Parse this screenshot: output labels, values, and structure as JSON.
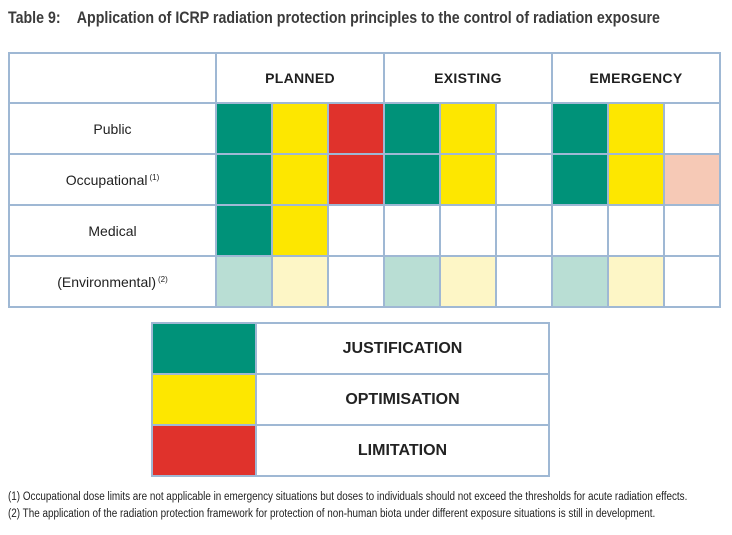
{
  "title": {
    "number": "Table 9:",
    "text": "Application of ICRP radiation protection principles to the control of radiation exposure"
  },
  "columns": [
    "PLANNED",
    "EXISTING",
    "EMERGENCY"
  ],
  "rows": [
    {
      "label": "Public",
      "sup": "",
      "cells": [
        "justification",
        "optimisation",
        "limitation",
        "justification",
        "optimisation",
        "none",
        "justification",
        "optimisation",
        "none"
      ]
    },
    {
      "label": "Occupational",
      "sup": "(1)",
      "cells": [
        "justification",
        "optimisation",
        "limitation",
        "justification",
        "optimisation",
        "none",
        "justification",
        "optimisation",
        "limitation-light"
      ]
    },
    {
      "label": "Medical",
      "sup": "",
      "cells": [
        "justification",
        "optimisation",
        "none",
        "none",
        "none",
        "none",
        "none",
        "none",
        "none"
      ]
    },
    {
      "label": "(Environmental)",
      "sup": "(2)",
      "cells": [
        "justification-light",
        "optimisation-light",
        "none",
        "justification-light",
        "optimisation-light",
        "none",
        "justification-light",
        "optimisation-light",
        "none"
      ]
    }
  ],
  "legend": [
    {
      "key": "justification",
      "label": "JUSTIFICATION",
      "color": "#009279"
    },
    {
      "key": "optimisation",
      "label": "OPTIMISATION",
      "color": "#fde700"
    },
    {
      "key": "limitation",
      "label": "LIMITATION",
      "color": "#e0322c"
    }
  ],
  "colors": {
    "justification": "#009279",
    "optimisation": "#fde700",
    "limitation": "#e0322c",
    "limitation-light": "#f6c9b6",
    "justification-light": "#b9ded4",
    "optimisation-light": "#fdf6c6",
    "border": "#9fb8d4"
  },
  "notes": [
    "(1) Occupational dose limits are not applicable in emergency situations but doses to individuals should not exceed the thresholds for acute radiation effects.",
    "(2) The application of the radiation protection framework for protection of non-human biota under different exposure situations is still in development."
  ]
}
